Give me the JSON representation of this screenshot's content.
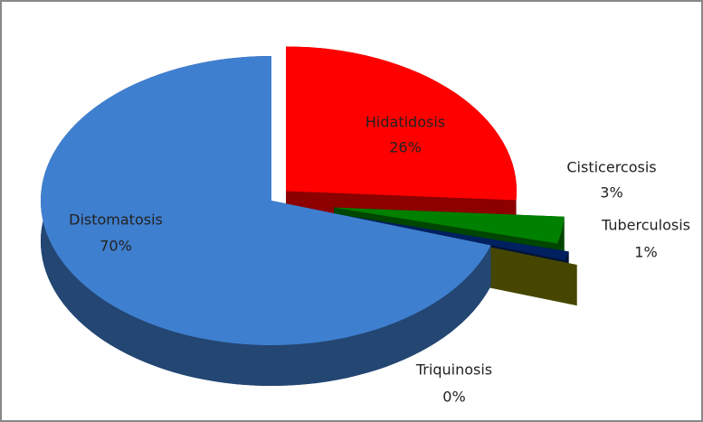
{
  "chart_data": {
    "type": "pie",
    "categories": [
      "Hidatidosis",
      "Cisticercosis",
      "Tuberculosis",
      "Triquinosis",
      "Distomatosis"
    ],
    "values": [
      26,
      3,
      1,
      0,
      70
    ],
    "value_labels": [
      "26%",
      "3%",
      "1%",
      "0%",
      "70%"
    ],
    "colors": [
      "#ff0000",
      "#008000",
      "#002060",
      "#808000",
      "#3f7fcf"
    ],
    "three_d": true,
    "exploded": true
  }
}
